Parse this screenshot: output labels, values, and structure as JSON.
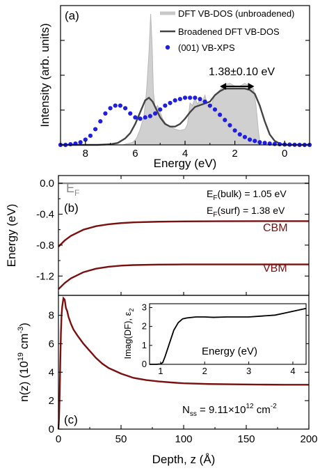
{
  "chart_data": [
    {
      "type": "area",
      "panel_label": "(a)",
      "xlabel": "Energy (eV)",
      "ylabel": "Intensity (arb. units)",
      "xlim": [
        9.0,
        -1.0
      ],
      "xticks": [
        "8",
        "6",
        "4",
        "2",
        "0"
      ],
      "x_reversed": true,
      "legend_position": "top-right",
      "annotation": "1.38±0.10 eV",
      "annotation_range": [
        2.6,
        1.22
      ],
      "series": [
        {
          "name": "DFT VB-DOS (unbroadened)",
          "color": "#c8c8c8",
          "x": [
            9.0,
            7.0,
            6.5,
            6.3,
            6.1,
            5.95,
            5.8,
            5.65,
            5.55,
            5.45,
            5.38,
            5.32,
            5.27,
            5.2,
            5.1,
            5.0,
            4.9,
            4.8,
            4.7,
            4.6,
            4.5,
            4.4,
            4.2,
            4.0,
            3.9,
            3.8,
            3.7,
            3.6,
            3.5,
            3.4,
            3.3,
            3.2,
            3.1,
            3.0,
            2.8,
            2.6,
            2.4,
            2.2,
            2.0,
            1.8,
            1.6,
            1.4,
            1.25,
            1.15,
            1.05,
            1.0,
            0.9,
            0.7,
            0.5,
            0.0,
            -1.0
          ],
          "y": [
            0,
            0,
            0,
            0.01,
            0.02,
            0.05,
            0.12,
            0.22,
            0.4,
            0.7,
            1.0,
            0.75,
            0.4,
            0.28,
            0.3,
            0.25,
            0.2,
            0.17,
            0.15,
            0.14,
            0.13,
            0.12,
            0.11,
            0.12,
            0.16,
            0.32,
            0.3,
            0.36,
            0.31,
            0.35,
            0.33,
            0.38,
            0.3,
            0.28,
            0.38,
            0.42,
            0.46,
            0.47,
            0.45,
            0.45,
            0.47,
            0.45,
            0.43,
            0.3,
            0.1,
            0.03,
            0.0,
            0.0,
            0.0,
            0.0,
            0.0
          ]
        },
        {
          "name": "Broadened DFT VB-DOS",
          "color": "#444444",
          "x": [
            9.0,
            7.5,
            7.0,
            6.7,
            6.4,
            6.2,
            6.0,
            5.8,
            5.6,
            5.45,
            5.3,
            5.15,
            5.0,
            4.8,
            4.6,
            4.4,
            4.2,
            4.0,
            3.8,
            3.6,
            3.3,
            3.0,
            2.8,
            2.6,
            2.4,
            2.2,
            2.0,
            1.8,
            1.6,
            1.4,
            1.2,
            1.0,
            0.8,
            0.6,
            0.4,
            0.2,
            0.0,
            -1.0
          ],
          "y": [
            0,
            0,
            0.005,
            0.015,
            0.05,
            0.09,
            0.16,
            0.25,
            0.34,
            0.36,
            0.33,
            0.27,
            0.21,
            0.16,
            0.14,
            0.14,
            0.16,
            0.2,
            0.25,
            0.29,
            0.31,
            0.33,
            0.38,
            0.41,
            0.43,
            0.43,
            0.43,
            0.43,
            0.43,
            0.42,
            0.39,
            0.3,
            0.18,
            0.08,
            0.03,
            0.01,
            0.0,
            0.0
          ]
        },
        {
          "name": "(001) VB-XPS",
          "color": "#1f1fdd",
          "x": [
            9.0,
            8.8,
            8.6,
            8.4,
            8.2,
            8.0,
            7.8,
            7.6,
            7.4,
            7.2,
            7.0,
            6.8,
            6.6,
            6.4,
            6.2,
            6.0,
            5.8,
            5.6,
            5.4,
            5.2,
            5.0,
            4.8,
            4.6,
            4.4,
            4.2,
            4.0,
            3.8,
            3.6,
            3.4,
            3.2,
            3.0,
            2.8,
            2.6,
            2.4,
            2.2,
            2.0,
            1.8,
            1.6,
            1.4,
            1.2,
            1.0,
            0.8,
            0.6,
            0.4,
            0.2,
            0.0,
            -0.2,
            -0.4,
            -0.6,
            -0.8,
            -1.0
          ],
          "y": [
            0.0,
            0.0,
            0.005,
            0.01,
            0.02,
            0.04,
            0.07,
            0.12,
            0.18,
            0.24,
            0.28,
            0.3,
            0.3,
            0.28,
            0.24,
            0.21,
            0.2,
            0.21,
            0.22,
            0.24,
            0.27,
            0.3,
            0.32,
            0.34,
            0.35,
            0.36,
            0.36,
            0.36,
            0.35,
            0.33,
            0.3,
            0.27,
            0.23,
            0.19,
            0.15,
            0.11,
            0.08,
            0.06,
            0.04,
            0.03,
            0.02,
            0.015,
            0.01,
            0.007,
            0.005,
            0.003,
            0.002,
            0.001,
            0.0,
            0.0,
            0.0
          ]
        }
      ]
    },
    {
      "type": "line",
      "panel_label": "(b)",
      "ylabel": "Energy (eV)",
      "xlim": [
        0,
        200
      ],
      "ylim": [
        -1.45,
        0.1
      ],
      "yticks": [
        "0.0",
        "-0.4",
        "-0.8",
        "-1.2"
      ],
      "ytick_values": [
        0.0,
        -0.4,
        -0.8,
        -1.2
      ],
      "annotations": {
        "ef_main": "E",
        "ef_sub": "F",
        "bulk_e": "E",
        "bulk_sub": "F",
        "bulk_rest": "(bulk) = 1.05 eV",
        "surf_e": "E",
        "surf_sub": "F",
        "surf_rest": "(surf) = 1.38 eV"
      },
      "series": [
        {
          "name": "E_F",
          "color": "#888888",
          "x": [
            0,
            200
          ],
          "y": [
            0.0,
            0.0
          ]
        },
        {
          "name": "CBM",
          "color": "#7a1010",
          "x": [
            0,
            5,
            10,
            20,
            30,
            40,
            50,
            60,
            80,
            100,
            130,
            160,
            200
          ],
          "y": [
            -0.82,
            -0.74,
            -0.68,
            -0.6,
            -0.555,
            -0.53,
            -0.515,
            -0.505,
            -0.497,
            -0.493,
            -0.491,
            -0.49,
            -0.49
          ]
        },
        {
          "name": "VBM",
          "color": "#7a1010",
          "x": [
            0,
            5,
            10,
            20,
            30,
            40,
            50,
            60,
            80,
            100,
            130,
            160,
            200
          ],
          "y": [
            -1.37,
            -1.29,
            -1.23,
            -1.15,
            -1.105,
            -1.08,
            -1.065,
            -1.058,
            -1.052,
            -1.05,
            -1.05,
            -1.05,
            -1.05
          ]
        }
      ]
    },
    {
      "type": "line",
      "panel_label": "(c)",
      "xlabel": "Depth, z (Å)",
      "xlim": [
        0,
        200
      ],
      "xticks": [
        "0",
        "50",
        "100",
        "150",
        "200"
      ],
      "xtick_values": [
        0,
        50,
        100,
        150,
        200
      ],
      "ylim": [
        0,
        9.4
      ],
      "yticks": [
        "0",
        "2",
        "4",
        "6",
        "8"
      ],
      "ytick_values": [
        0,
        2,
        4,
        6,
        8
      ],
      "ylabel_main": "n(z) (10",
      "ylabel_sup1": "19",
      "ylabel_unit": " cm",
      "ylabel_sup2": "-3",
      "ylabel_close": ")",
      "nss_main": "N",
      "nss_sub": "ss",
      "nss_eq": " = 9.11×10",
      "nss_sup": "12",
      "nss_unit": " cm",
      "nss_sup2": "-2",
      "series": [
        {
          "name": "n(z)",
          "color": "#7a1010",
          "x": [
            0,
            0.5,
            1,
            1.5,
            2,
            2.5,
            3,
            3.5,
            4,
            5,
            6,
            7,
            8,
            10,
            12,
            15,
            20,
            25,
            30,
            35,
            40,
            45,
            50,
            60,
            70,
            80,
            90,
            100,
            120,
            140,
            160,
            180,
            200
          ],
          "y": [
            0,
            0.8,
            2.5,
            4.8,
            6.8,
            8.0,
            8.6,
            8.9,
            9.2,
            9.1,
            8.5,
            8.3,
            7.9,
            7.4,
            7.0,
            6.6,
            6.0,
            5.5,
            5.0,
            4.6,
            4.3,
            4.1,
            3.9,
            3.6,
            3.45,
            3.35,
            3.28,
            3.22,
            3.17,
            3.15,
            3.13,
            3.12,
            3.12
          ]
        }
      ],
      "inset": {
        "xlabel": "Energy (eV)",
        "ylabel_main": "Imag(DF), ε",
        "ylabel_sub": "2",
        "xlim": [
          0.75,
          4.3
        ],
        "ylim": [
          0,
          3.2
        ],
        "xticks": [
          "1",
          "2",
          "3",
          "4"
        ],
        "xtick_values": [
          1,
          2,
          3,
          4
        ],
        "yticks": [
          "0",
          "1",
          "2",
          "3"
        ],
        "ytick_values": [
          0,
          1,
          2,
          3
        ],
        "x": [
          0.75,
          0.9,
          1.0,
          1.05,
          1.1,
          1.2,
          1.3,
          1.4,
          1.5,
          1.6,
          1.8,
          2.0,
          2.2,
          2.5,
          2.8,
          3.0,
          3.3,
          3.6,
          3.8,
          4.0,
          4.2,
          4.3
        ],
        "y": [
          0,
          0,
          0.02,
          0.1,
          0.4,
          1.1,
          1.8,
          2.2,
          2.4,
          2.45,
          2.5,
          2.5,
          2.48,
          2.5,
          2.5,
          2.5,
          2.55,
          2.6,
          2.7,
          2.8,
          2.9,
          2.95
        ]
      }
    }
  ]
}
